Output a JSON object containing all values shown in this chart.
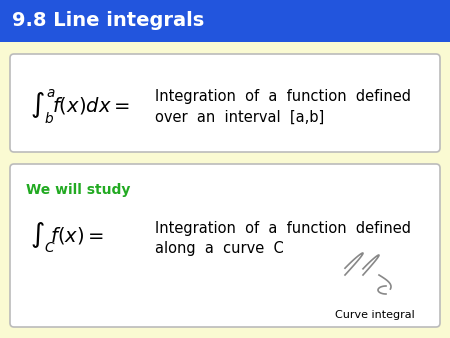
{
  "title": "9.8 Line integrals",
  "title_bg": "#2255DD",
  "title_color": "#FFFFFF",
  "bg_color": "#FAFAD2",
  "box_bg": "#FFFFFF",
  "box_edge": "#BBBBBB",
  "box1_formula": "$\\int_b^a f(x)dx =$",
  "box1_text_line1": "Integration  of  a  function  defined",
  "box1_text_line2": "over  an  interval  [a,b]",
  "box2_label": "We will study",
  "box2_label_color": "#22AA22",
  "box2_formula": "$\\int_C f(x) =$",
  "box2_text_line1": "Integration  of  a  function  defined",
  "box2_text_line2": "along  a  curve  C",
  "box2_caption": "Curve integral",
  "title_fontsize": 14,
  "formula_fontsize": 12,
  "text_fontsize": 11,
  "label_fontsize": 10,
  "caption_fontsize": 8
}
